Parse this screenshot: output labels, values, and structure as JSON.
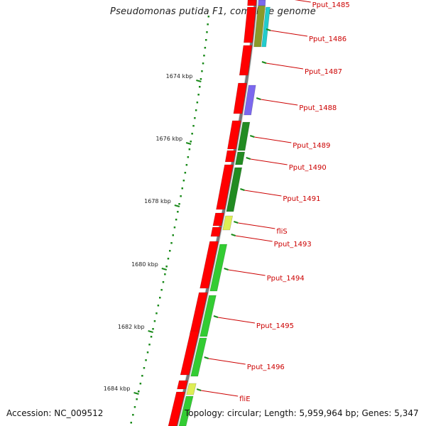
{
  "header": {
    "title": "Pseudomonas putida F1, complete genome"
  },
  "footer": {
    "accession": "Accession: NC_009512",
    "summary": "Topology: circular; Length: 5,959,964 bp; Genes: 5,347"
  },
  "colors": {
    "backbone": "#777777",
    "axis": "#1a8a1a",
    "label": "#cc0000",
    "forward_gene": "#ff0000",
    "cds_dark_green": "#228b22",
    "cds_green": "#33cc33",
    "cds_purple": "#7b68ee",
    "cds_cyan": "#22cccc",
    "cds_olive": "#8a9a2a",
    "cds_yellow": "#ddee55"
  },
  "axis_labels": [
    "1674 kbp",
    "1676 kbp",
    "1678 kbp",
    "1680 kbp",
    "1682 kbp",
    "1684 kbp"
  ],
  "genes": [
    {
      "label": "Pput_1485"
    },
    {
      "label": "Pput_1486"
    },
    {
      "label": "Pput_1487"
    },
    {
      "label": "Pput_1488"
    },
    {
      "label": "Pput_1489"
    },
    {
      "label": "Pput_1490"
    },
    {
      "label": "Pput_1491"
    },
    {
      "label": "fliS"
    },
    {
      "label": "Pput_1493"
    },
    {
      "label": "Pput_1494"
    },
    {
      "label": "Pput_1495"
    },
    {
      "label": "Pput_1496"
    },
    {
      "label": "fliE"
    }
  ]
}
